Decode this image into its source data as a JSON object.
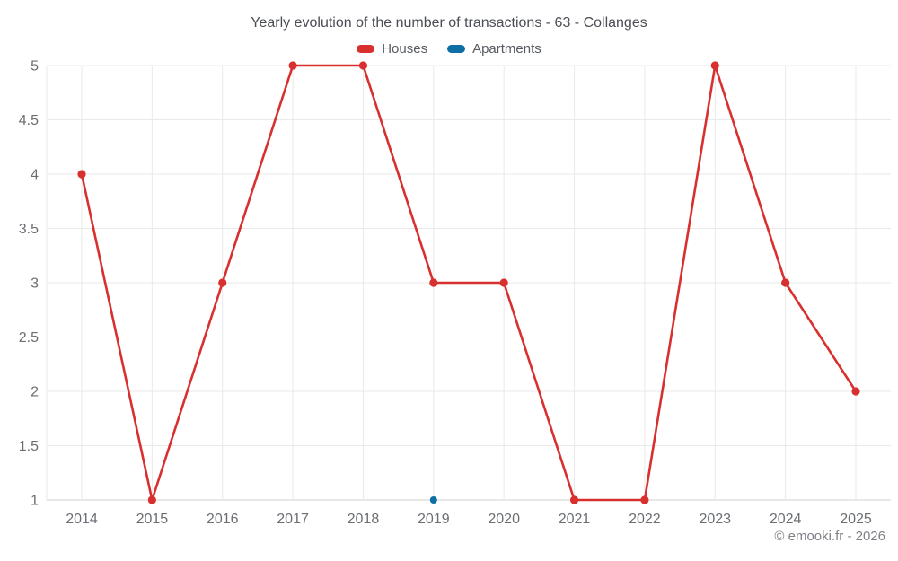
{
  "header": {
    "title": "Yearly evolution of the number of transactions - 63 - Collanges"
  },
  "chart_data": {
    "type": "line",
    "title": "Yearly evolution of the number of transactions - 63 - Collanges",
    "categories": [
      "2014",
      "2015",
      "2016",
      "2017",
      "2018",
      "2019",
      "2020",
      "2021",
      "2022",
      "2023",
      "2024",
      "2025"
    ],
    "series": [
      {
        "name": "Houses",
        "color": "#d7302e",
        "point_radius": 4.6,
        "values": [
          4,
          1,
          3,
          5,
          5,
          3,
          3,
          1,
          1,
          5,
          3,
          2
        ]
      },
      {
        "name": "Apartments",
        "color": "#0e6fa4",
        "point_radius": 4.0,
        "values": [
          null,
          null,
          null,
          null,
          null,
          1,
          null,
          null,
          null,
          null,
          null,
          null
        ]
      }
    ],
    "xlabel": "",
    "ylabel": "",
    "ylim": [
      1,
      5
    ],
    "yticks": [
      1,
      1.5,
      2,
      2.5,
      3,
      3.5,
      4,
      4.5,
      5
    ],
    "grid": true,
    "legend_position": "top"
  },
  "footer": {
    "copyright": "© emooki.fr - 2026"
  },
  "colors": {
    "grid": "#e9e9e9",
    "axis": "#d2d2d2",
    "tick_label": "#6a6e73",
    "title": "#4a4e54",
    "legend_label": "#565b61",
    "copyright": "#7d8186"
  }
}
